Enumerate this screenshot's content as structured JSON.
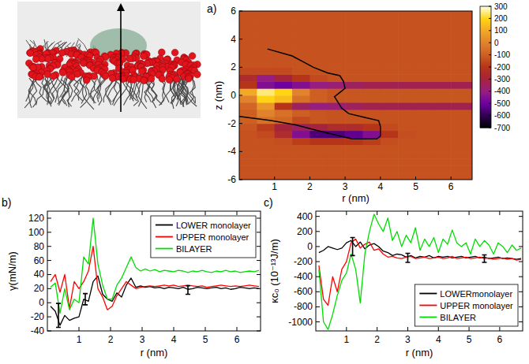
{
  "chart_data": [
    {
      "type": "heatmap",
      "panel_label": "a)",
      "x_label": "r (nm)",
      "y_label": "z (nm)",
      "xlim": [
        0,
        6.6
      ],
      "ylim": [
        -6,
        6
      ],
      "xticks": [
        1,
        2,
        3,
        4,
        5,
        6
      ],
      "yticks": [
        -6,
        -4,
        -2,
        0,
        2,
        4,
        6
      ],
      "r_edges": [
        0,
        0.5,
        1,
        1.5,
        2,
        2.5,
        3,
        3.5,
        4,
        4.5,
        5,
        5.5,
        6,
        6.6
      ],
      "z_edges": [
        -6,
        -5.5,
        -5,
        -4.5,
        -4,
        -3.5,
        -3,
        -2.5,
        -2,
        -1.5,
        -1,
        -0.5,
        0,
        0.5,
        1,
        1.5,
        2,
        2.5,
        3,
        3.5,
        4,
        4.5,
        5,
        5.5,
        6
      ],
      "cells": [
        [
          -130,
          -130,
          -130,
          -130,
          -130,
          -130,
          -130,
          -130,
          -130,
          -130,
          -130,
          -130,
          -130
        ],
        [
          -130,
          -130,
          -130,
          -130,
          -130,
          -130,
          -130,
          -130,
          -130,
          -130,
          -130,
          -130,
          -130
        ],
        [
          -130,
          -130,
          -130,
          -130,
          -130,
          -130,
          -130,
          -130,
          -130,
          -130,
          -130,
          -130,
          -130
        ],
        [
          -130,
          -130,
          -130,
          -130,
          -130,
          -130,
          -130,
          -130,
          -130,
          -130,
          -130,
          -130,
          -130
        ],
        [
          -130,
          -130,
          -130,
          -130,
          -130,
          -130,
          -130,
          -130,
          -130,
          -130,
          -130,
          -130,
          -130
        ],
        [
          -130,
          -130,
          -140,
          -180,
          -200,
          -200,
          -200,
          -180,
          -140,
          -130,
          -130,
          -130,
          -130
        ],
        [
          -130,
          -150,
          -250,
          -450,
          -550,
          -550,
          -520,
          -450,
          -200,
          -140,
          -130,
          -130,
          -130
        ],
        [
          -120,
          -180,
          -300,
          -350,
          -300,
          -250,
          -250,
          -200,
          -150,
          -130,
          -130,
          -130,
          -130
        ],
        [
          -100,
          -50,
          -80,
          -150,
          -120,
          -130,
          -130,
          -130,
          -130,
          -130,
          -130,
          -130,
          -130
        ],
        [
          -100,
          0,
          -50,
          -100,
          -120,
          -130,
          -130,
          -130,
          -130,
          -130,
          -130,
          -130,
          -130
        ],
        [
          -80,
          50,
          -200,
          -350,
          -400,
          -380,
          -350,
          -330,
          -330,
          -330,
          -330,
          -330,
          -330
        ],
        [
          0,
          200,
          150,
          -50,
          -100,
          -120,
          -120,
          -120,
          -120,
          -120,
          -120,
          -120,
          -120
        ],
        [
          100,
          250,
          200,
          0,
          -100,
          -120,
          -120,
          -120,
          -120,
          -120,
          -120,
          -120,
          -120
        ],
        [
          -200,
          -450,
          -500,
          -450,
          -400,
          -380,
          -350,
          -330,
          -330,
          -330,
          -330,
          -330,
          -330
        ],
        [
          -250,
          -400,
          -300,
          -200,
          -150,
          -130,
          -130,
          -130,
          -130,
          -130,
          -130,
          -130,
          -130
        ],
        [
          -150,
          -150,
          -150,
          -130,
          -130,
          -130,
          -130,
          -130,
          -130,
          -130,
          -130,
          -130,
          -130
        ],
        [
          -130,
          -130,
          -130,
          -130,
          -130,
          -130,
          -130,
          -130,
          -130,
          -130,
          -130,
          -130,
          -130
        ],
        [
          -130,
          -130,
          -130,
          -130,
          -130,
          -130,
          -130,
          -130,
          -130,
          -130,
          -130,
          -130,
          -130
        ],
        [
          -130,
          -130,
          -130,
          -130,
          -130,
          -130,
          -130,
          -130,
          -130,
          -130,
          -130,
          -130,
          -130
        ],
        [
          -130,
          -130,
          -130,
          -130,
          -130,
          -130,
          -130,
          -130,
          -130,
          -130,
          -130,
          -130,
          -130
        ],
        [
          -130,
          -130,
          -130,
          -130,
          -130,
          -130,
          -130,
          -130,
          -130,
          -130,
          -130,
          -130,
          -130
        ],
        [
          -130,
          -130,
          -130,
          -130,
          -130,
          -130,
          -130,
          -130,
          -130,
          -130,
          -130,
          -130,
          -130
        ],
        [
          -130,
          -130,
          -130,
          -130,
          -130,
          -130,
          -130,
          -130,
          -130,
          -130,
          -130,
          -130,
          -130
        ],
        [
          -130,
          -130,
          -130,
          -130,
          -130,
          -130,
          -130,
          -130,
          -130,
          -130,
          -130,
          -130,
          -130
        ]
      ],
      "colorbar_range": [
        -700,
        300
      ],
      "colorbar_ticks": [
        300,
        200,
        100,
        0,
        -100,
        -200,
        -300,
        -400,
        -500,
        -600,
        -700
      ],
      "contour": {
        "color": "#000000",
        "r": [
          0.8,
          1.5,
          1.8,
          2.1,
          2.5,
          2.85,
          2.95,
          3.0,
          2.85,
          2.7,
          2.8,
          2.9,
          3.1,
          3.6,
          3.95,
          4.0,
          4.0,
          3.9,
          3.2,
          2.7,
          2.2,
          1.6,
          0.9,
          0.0
        ],
        "z": [
          3.3,
          2.8,
          2.4,
          2.0,
          1.6,
          1.4,
          1.0,
          0.5,
          0.2,
          -0.1,
          -0.5,
          -0.9,
          -1.3,
          -1.6,
          -1.8,
          -2.2,
          -2.9,
          -3.1,
          -3.1,
          -2.8,
          -2.5,
          -2.1,
          -1.8,
          -1.5
        ]
      }
    },
    {
      "type": "line",
      "panel_label": "b)",
      "x_label": "r (nm)",
      "y_label": "γ(mN/m)",
      "xlim": [
        0,
        6.75
      ],
      "ylim": [
        -40,
        130
      ],
      "xticks": [
        1,
        2,
        3,
        4,
        5,
        6
      ],
      "yticks": [
        -40,
        -20,
        0,
        20,
        40,
        60,
        80,
        100,
        120
      ],
      "legend": "upper right",
      "x": [
        0.1,
        0.25,
        0.4,
        0.55,
        0.7,
        0.85,
        1.0,
        1.15,
        1.3,
        1.45,
        1.6,
        1.75,
        1.9,
        2.05,
        2.2,
        2.35,
        2.5,
        2.65,
        2.8,
        2.95,
        3.1,
        3.25,
        3.4,
        3.55,
        3.7,
        3.85,
        4.0,
        4.15,
        4.3,
        4.45,
        4.6,
        4.75,
        4.9,
        5.05,
        5.2,
        5.35,
        5.5,
        5.65,
        5.8,
        5.95,
        6.1,
        6.25,
        6.4,
        6.55,
        6.7
      ],
      "series": [
        {
          "name": "LOWER monolayer",
          "color": "#000000",
          "values": [
            -5,
            -12,
            -32,
            -18,
            -25,
            -22,
            -20,
            5,
            2,
            30,
            38,
            12,
            5,
            2,
            14,
            8,
            25,
            35,
            22,
            24,
            22,
            23,
            21,
            22,
            20,
            22,
            21,
            20,
            22,
            19,
            20,
            22,
            21,
            20,
            21,
            22,
            20,
            21,
            19,
            20,
            22,
            21,
            20,
            21,
            20
          ]
        },
        {
          "name": "UPPER monolayer",
          "color": "#ff0000",
          "values": [
            30,
            40,
            15,
            40,
            -8,
            30,
            20,
            30,
            45,
            80,
            20,
            8,
            -10,
            -5,
            10,
            20,
            30,
            25,
            20,
            22,
            23,
            24,
            23,
            24,
            25,
            24,
            25,
            23,
            24,
            25,
            24,
            23,
            24,
            22,
            23,
            24,
            25,
            24,
            23,
            24,
            23,
            24,
            25,
            24,
            23
          ]
        },
        {
          "name": "BILAYER",
          "color": "#00dd00",
          "values": [
            22,
            28,
            -15,
            20,
            -10,
            5,
            0,
            65,
            55,
            120,
            55,
            25,
            5,
            5,
            25,
            35,
            50,
            65,
            50,
            45,
            48,
            45,
            47,
            44,
            46,
            45,
            44,
            46,
            45,
            43,
            45,
            44,
            46,
            44,
            43,
            45,
            44,
            46,
            44,
            45,
            43,
            44,
            45,
            44,
            46
          ]
        }
      ],
      "error_bars": {
        "color": "#000000",
        "x": [
          0.35,
          1.2,
          4.45
        ],
        "values": [
          -18,
          5,
          18
        ],
        "errors": [
          17,
          8,
          6
        ]
      }
    },
    {
      "type": "line",
      "panel_label": "c)",
      "x_label": "r (nm)",
      "y_label": "κc₀ (10⁻¹³J/m)",
      "xlim": [
        0,
        6.75
      ],
      "ylim": [
        -1120,
        470
      ],
      "xticks": [
        1,
        2,
        3,
        4,
        5,
        6
      ],
      "yticks": [
        -1000,
        -800,
        -600,
        -400,
        -200,
        0,
        200,
        400
      ],
      "legend": "lower right",
      "x": [
        0.1,
        0.25,
        0.4,
        0.55,
        0.7,
        0.85,
        1.0,
        1.15,
        1.3,
        1.45,
        1.6,
        1.75,
        1.9,
        2.05,
        2.2,
        2.35,
        2.5,
        2.65,
        2.8,
        2.95,
        3.1,
        3.25,
        3.4,
        3.55,
        3.7,
        3.85,
        4.0,
        4.15,
        4.3,
        4.45,
        4.6,
        4.75,
        4.9,
        5.05,
        5.2,
        5.35,
        5.5,
        5.65,
        5.8,
        5.95,
        6.1,
        6.25,
        6.4,
        6.55,
        6.7
      ],
      "series": [
        {
          "name": "LOWERmonolayer",
          "color": "#000000",
          "values": [
            -80,
            -50,
            0,
            -20,
            -40,
            -20,
            50,
            80,
            0,
            60,
            -30,
            20,
            40,
            0,
            -60,
            -80,
            -120,
            -100,
            -110,
            -140,
            -120,
            -150,
            -130,
            -140,
            -120,
            -150,
            -130,
            -140,
            -130,
            -150,
            -140,
            -130,
            -150,
            -140,
            -130,
            -150,
            -140,
            -160,
            -150,
            -140,
            -160,
            -150,
            -160,
            -170,
            -160
          ]
        },
        {
          "name": "UPPER monolayer",
          "color": "#ff0000",
          "values": [
            -250,
            -700,
            -780,
            -400,
            -600,
            -300,
            -200,
            50,
            100,
            -20,
            30,
            60,
            -50,
            -30,
            -100,
            -140,
            -130,
            -150,
            -160,
            -140,
            -130,
            -160,
            -150,
            -140,
            -160,
            -150,
            -140,
            -160,
            -150,
            -130,
            -160,
            -150,
            -140,
            -160,
            -150,
            -140,
            -160,
            -150,
            -170,
            -160,
            -150,
            -170,
            -160,
            -180,
            -170
          ]
        },
        {
          "name": "BILAYER",
          "color": "#00dd00",
          "values": [
            -300,
            -1000,
            -1100,
            -900,
            -650,
            -450,
            -350,
            -100,
            -300,
            -750,
            -100,
            200,
            430,
            300,
            200,
            380,
            80,
            200,
            0,
            150,
            50,
            250,
            -50,
            100,
            0,
            120,
            -80,
            100,
            30,
            220,
            50,
            0,
            50,
            -100,
            100,
            0,
            80,
            20,
            -100,
            50,
            0,
            -80,
            20,
            -50,
            -20
          ]
        }
      ],
      "error_bars": {
        "color": "#000000",
        "x": [
          1.2,
          3.0,
          5.5
        ],
        "values": [
          0,
          -150,
          -160
        ],
        "errors": [
          120,
          60,
          50
        ]
      }
    }
  ]
}
